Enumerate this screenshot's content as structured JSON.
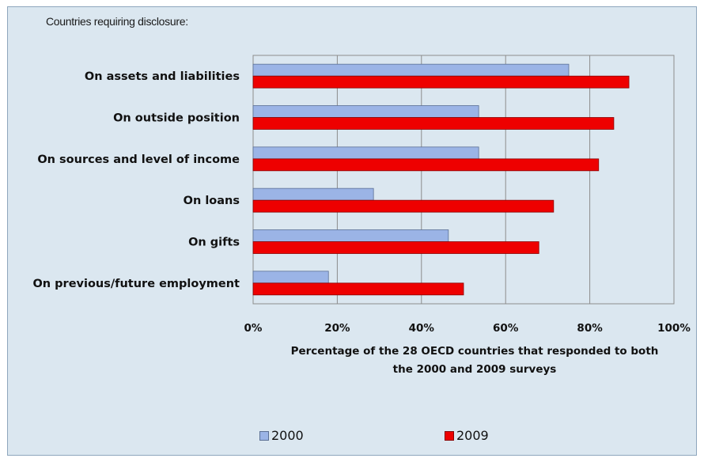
{
  "chart_data": {
    "type": "bar",
    "orientation": "horizontal",
    "note": "Countries requiring disclosure:",
    "categories": [
      "On assets and liabilities",
      "On outside position",
      "On sources and level of income",
      "On loans",
      "On gifts",
      "On previous/future employment"
    ],
    "series": [
      {
        "name": "2000",
        "color": "#9bb4e6",
        "values": [
          75,
          53.6,
          53.6,
          28.6,
          46.4,
          17.9
        ]
      },
      {
        "name": "2009",
        "color": "#ee0000",
        "values": [
          89.3,
          85.7,
          82.1,
          71.4,
          67.9,
          50
        ]
      }
    ],
    "x_ticks": [
      "0%",
      "20%",
      "40%",
      "60%",
      "80%",
      "100%"
    ],
    "xlim": [
      0,
      100
    ],
    "xlabel": "Percentage of the 28 OECD countries that responded  to both the 2000 and 2009 surveys",
    "xlabel_lines": [
      "Percentage of the 28 OECD countries that responded  to both",
      "the 2000 and 2009 surveys"
    ],
    "grid": true,
    "legend": "bottom"
  }
}
